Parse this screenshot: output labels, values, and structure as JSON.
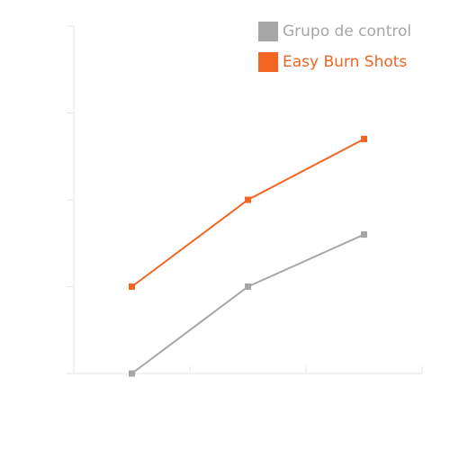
{
  "chart_data": {
    "type": "line",
    "x": [
      1,
      2,
      3
    ],
    "ylim": [
      0,
      4
    ],
    "grid": false,
    "legend_position": "top-right",
    "series": [
      {
        "name": "Grupo de control",
        "color": "#a6a6a6",
        "values": [
          0,
          1,
          1.6
        ]
      },
      {
        "name": "Easy Burn Shots",
        "color": "#f26522",
        "values": [
          1,
          2,
          2.7
        ]
      }
    ]
  }
}
